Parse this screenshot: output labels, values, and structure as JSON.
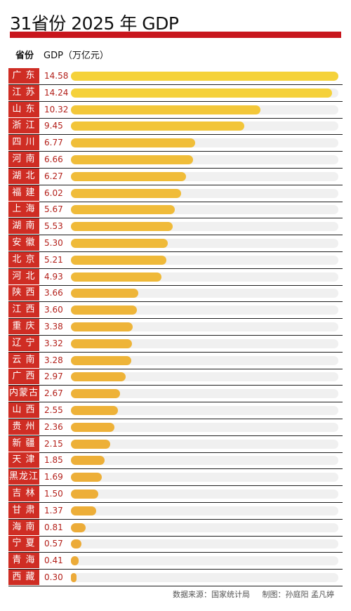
{
  "title": "31省份 2025 年 GDP",
  "headers": {
    "province": "省份",
    "unit": "GDP（万亿元）"
  },
  "colors": {
    "title_bar": "#c8161d",
    "label_bg": "#cf2d24",
    "value_text": "#b3201a",
    "bar_high": "#f5d23a",
    "bar_low": "#ecaa38",
    "track": "#f0f0f0"
  },
  "chart_data": {
    "type": "bar",
    "orientation": "horizontal",
    "categories": [
      "广 东",
      "江 苏",
      "山 东",
      "浙 江",
      "四 川",
      "河 南",
      "湖 北",
      "福 建",
      "上 海",
      "湖 南",
      "安 徽",
      "北 京",
      "河 北",
      "陕 西",
      "江 西",
      "重 庆",
      "辽 宁",
      "云 南",
      "广 西",
      "内蒙古",
      "山 西",
      "贵 州",
      "新 疆",
      "天 津",
      "黑龙江",
      "吉 林",
      "甘 肃",
      "海 南",
      "宁 夏",
      "青 海",
      "西 藏"
    ],
    "values": [
      14.58,
      14.24,
      10.32,
      9.45,
      6.77,
      6.66,
      6.27,
      6.02,
      5.67,
      5.53,
      5.3,
      5.21,
      4.93,
      3.66,
      3.6,
      3.38,
      3.32,
      3.28,
      2.97,
      2.67,
      2.55,
      2.36,
      2.15,
      1.85,
      1.69,
      1.5,
      1.37,
      0.81,
      0.57,
      0.41,
      0.3
    ],
    "value_labels": [
      "14.58",
      "14.24",
      "10.32",
      "9.45",
      "6.77",
      "6.66",
      "6.27",
      "6.02",
      "5.67",
      "5.53",
      "5.30",
      "5.21",
      "4.93",
      "3.66",
      "3.60",
      "3.38",
      "3.32",
      "3.28",
      "2.97",
      "2.67",
      "2.55",
      "2.36",
      "2.15",
      "1.85",
      "1.69",
      "1.50",
      "1.37",
      "0.81",
      "0.57",
      "0.41",
      "0.30"
    ],
    "xlim": [
      0,
      14.58
    ],
    "grid": false,
    "legend": "none"
  },
  "footer": {
    "source": "数据来源：国家统计局",
    "credit": "制图：孙庭阳  孟凡婷"
  }
}
